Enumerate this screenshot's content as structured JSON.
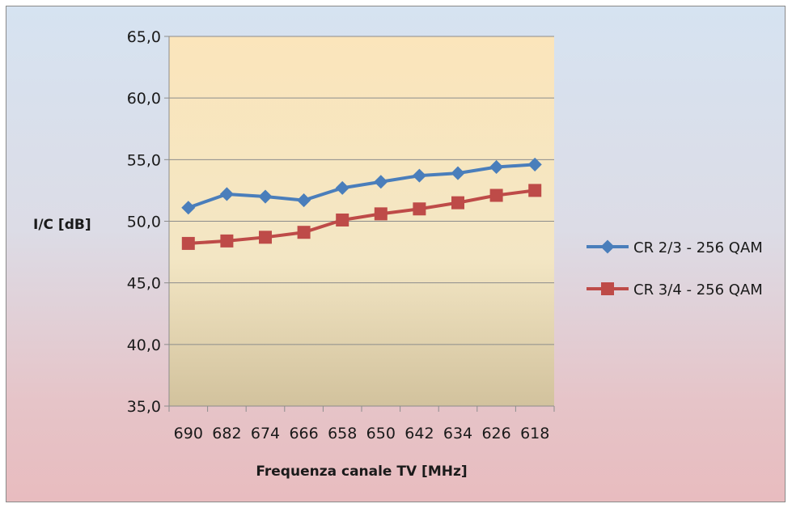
{
  "chart_data": {
    "type": "line",
    "xlabel": "Frequenza canale TV [MHz]",
    "ylabel": "I/C [dB]",
    "categories": [
      "690",
      "682",
      "674",
      "666",
      "658",
      "650",
      "642",
      "634",
      "626",
      "618"
    ],
    "ylim": [
      35.0,
      65.0
    ],
    "yticks": [
      "35,0",
      "40,0",
      "45,0",
      "50,0",
      "55,0",
      "60,0",
      "65,0"
    ],
    "grid": "horizontal",
    "legend_position": "right",
    "series": [
      {
        "name": "CR 2/3 - 256 QAM",
        "color": "#4a7ebb",
        "marker": "diamond",
        "values": [
          51.1,
          52.2,
          52.0,
          51.7,
          52.7,
          53.2,
          53.7,
          53.9,
          54.4,
          54.6
        ]
      },
      {
        "name": "CR 3/4 - 256 QAM",
        "color": "#be4b48",
        "marker": "square",
        "values": [
          48.2,
          48.4,
          48.7,
          49.1,
          50.1,
          50.6,
          51.0,
          51.5,
          52.1,
          52.5
        ]
      }
    ]
  }
}
